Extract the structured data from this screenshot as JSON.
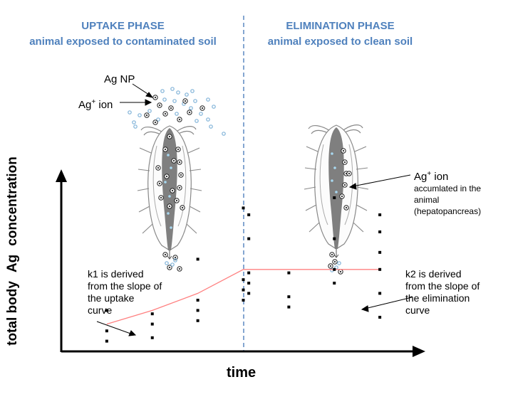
{
  "colors": {
    "phase_title": "#4f81bd",
    "divider": "#4f81bd",
    "curve": "#ff8080",
    "gut": "#7f7f7f",
    "particle": "#7fb2d8"
  },
  "phases": {
    "uptake": {
      "title": "UPTAKE PHASE",
      "subtitle": "animal exposed to contaminated soil"
    },
    "elimination": {
      "title": "ELIMINATION PHASE",
      "subtitle": "animal exposed to clean soil"
    }
  },
  "labels": {
    "ag_np": "Ag NP",
    "ag_ion_base": "Ag",
    "ag_ion_sup": "+",
    "ag_ion_suffix": " ion",
    "accum_title_base": "Ag",
    "accum_title_sup": "+",
    "accum_title_suffix": " ion",
    "accum_line1": "accumlated in the",
    "accum_line2": "animal",
    "accum_line3": "(hepatopancreas)",
    "k1_line1": "k1 is derived",
    "k1_line2": "from the slope of",
    "k1_line3": "the uptake",
    "k1_line4": "curve",
    "k2_line1": "k2 is derived",
    "k2_line2": "from the slope of",
    "k2_line3": "the elimination",
    "k2_line4": "curve"
  },
  "axes": {
    "y_part1": "total body",
    "y_part2": "Ag",
    "y_part3": "concentration",
    "x": "time"
  },
  "chart_data": {
    "type": "scatter",
    "points": [
      [
        1,
        1.2
      ],
      [
        1,
        0.6
      ],
      [
        1,
        0.3
      ],
      [
        2,
        1.1
      ],
      [
        2,
        0.8
      ],
      [
        2,
        0.4
      ],
      [
        3,
        2.7
      ],
      [
        3,
        1.5
      ],
      [
        3,
        1.2
      ],
      [
        3,
        0.9
      ],
      [
        4,
        4.2
      ],
      [
        4,
        2.1
      ],
      [
        4,
        1.8
      ],
      [
        4,
        1.5
      ],
      [
        4.12,
        4.0
      ],
      [
        4.12,
        3.3
      ],
      [
        4.12,
        2.3
      ],
      [
        4.12,
        2.0
      ],
      [
        4.12,
        1.7
      ],
      [
        5,
        2.3
      ],
      [
        5,
        1.6
      ],
      [
        5,
        1.3
      ],
      [
        6,
        4.5
      ],
      [
        6,
        3.3
      ],
      [
        6,
        2.4
      ],
      [
        6,
        2.0
      ],
      [
        7,
        4.0
      ],
      [
        7,
        3.5
      ],
      [
        7,
        2.9
      ],
      [
        7,
        2.4
      ],
      [
        7,
        1.7
      ],
      [
        7,
        1.0
      ]
    ],
    "curve": [
      [
        1,
        0.8
      ],
      [
        2,
        1.2
      ],
      [
        3,
        1.7
      ],
      [
        4,
        2.4
      ],
      [
        7,
        2.4
      ]
    ],
    "xlim": [
      0,
      8
    ],
    "ylim": [
      0,
      5
    ]
  }
}
